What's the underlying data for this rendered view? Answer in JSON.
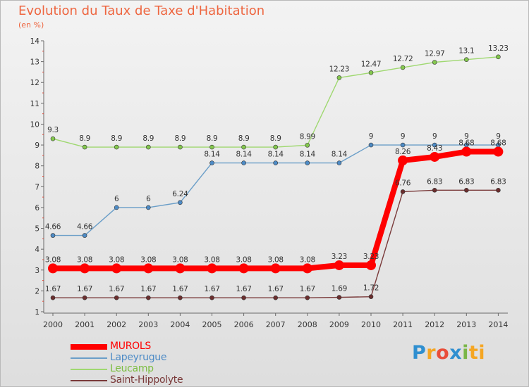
{
  "title": "Evolution du Taux de Taxe d'Habitation",
  "subtitle": "(en %)",
  "brand": [
    "P",
    "r",
    "o",
    "x",
    "i",
    "ti"
  ],
  "chart_data": {
    "type": "line",
    "title": "Evolution du Taux de Taxe d'Habitation",
    "ylabel": "(en %)",
    "xlabel": "",
    "ylim": [
      1,
      14
    ],
    "yticks": [
      1,
      2,
      3,
      4,
      5,
      6,
      7,
      8,
      9,
      10,
      11,
      12,
      13,
      14
    ],
    "grid": false,
    "legend_position": "bottom-left",
    "categories": [
      "2000",
      "2001",
      "2002",
      "2003",
      "2004",
      "2005",
      "2006",
      "2007",
      "2008",
      "2009",
      "2010",
      "2011",
      "2012",
      "2013",
      "2014"
    ],
    "series": [
      {
        "name": "MUROLS",
        "color": "#ff0000",
        "marker": "#ff0000",
        "bold": true,
        "values": [
          3.08,
          3.08,
          3.08,
          3.08,
          3.08,
          3.08,
          3.08,
          3.08,
          3.08,
          3.23,
          3.23,
          8.26,
          8.43,
          8.68,
          8.68
        ],
        "labels": [
          "3.08",
          "3.08",
          "3.08",
          "3.08",
          "3.08",
          "3.08",
          "3.08",
          "3.08",
          "3.08",
          "3.23",
          "3.23",
          "8.26",
          "8.43",
          "8.68",
          "8.68"
        ]
      },
      {
        "name": "Lapeyrugue",
        "color": "#6a9ec8",
        "marker": "#4d8bc6",
        "bold": false,
        "values": [
          4.66,
          4.66,
          6,
          6,
          6.24,
          8.14,
          8.14,
          8.14,
          8.14,
          8.14,
          9,
          9,
          9,
          9,
          9
        ],
        "labels": [
          "4.66",
          "4.66",
          "6",
          "6",
          "6.24",
          "8.14",
          "8.14",
          "8.14",
          "8.14",
          "8.14",
          "9",
          "9",
          "9",
          "9",
          "9"
        ]
      },
      {
        "name": "Leucamp",
        "color": "#9fd870",
        "marker": "#84c84e",
        "bold": false,
        "values": [
          9.3,
          8.9,
          8.9,
          8.9,
          8.9,
          8.9,
          8.9,
          8.9,
          8.99,
          12.23,
          12.47,
          12.72,
          12.97,
          13.1,
          13.23
        ],
        "labels": [
          "9.3",
          "8.9",
          "8.9",
          "8.9",
          "8.9",
          "8.9",
          "8.9",
          "8.9",
          "8.99",
          "12.23",
          "12.47",
          "12.72",
          "12.97",
          "13.1",
          "13.23"
        ]
      },
      {
        "name": "Saint-Hippolyte",
        "color": "#7a3a3a",
        "marker": "#6b2e2e",
        "bold": false,
        "values": [
          1.67,
          1.67,
          1.67,
          1.67,
          1.67,
          1.67,
          1.67,
          1.67,
          1.67,
          1.69,
          1.72,
          6.76,
          6.83,
          6.83,
          6.83
        ],
        "labels": [
          "1.67",
          "1.67",
          "1.67",
          "1.67",
          "1.67",
          "1.67",
          "1.67",
          "1.67",
          "1.67",
          "1.69",
          "1.72",
          "6.76",
          "6.83",
          "6.83",
          "6.83"
        ]
      }
    ]
  }
}
